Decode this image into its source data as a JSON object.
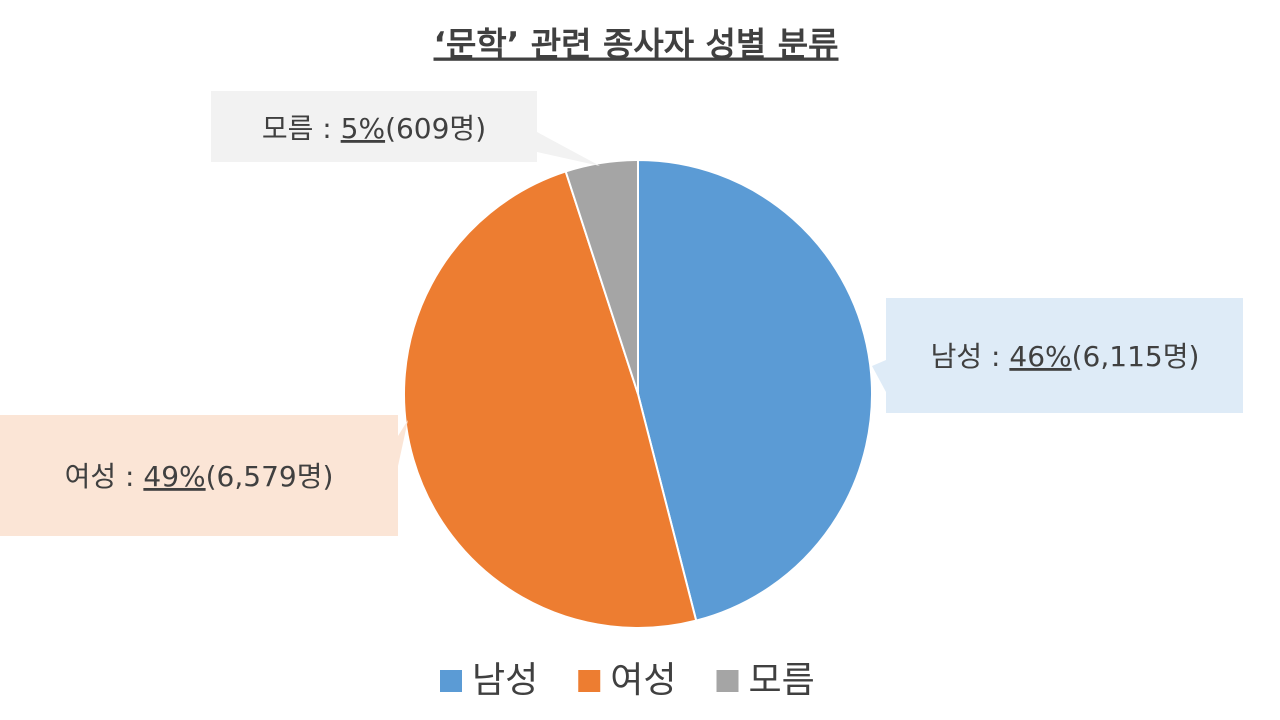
{
  "chart_data": {
    "type": "pie",
    "title": "‘문학’ 관련 종사자 성별 분류",
    "categories": [
      "남성",
      "여성",
      "모름"
    ],
    "values": [
      46,
      49,
      5
    ],
    "value_labels": [
      "46%",
      "49%",
      "5%"
    ],
    "count_labels": [
      "(6,115명)",
      "(6,579명)",
      "(609명)"
    ],
    "label_separator": " : ",
    "colors": [
      "#5b9bd5",
      "#ed7d31",
      "#a5a5a5"
    ],
    "label_box_colors": [
      "#deebf7",
      "#fbe5d6",
      "#f2f2f2"
    ],
    "legend": "bottom"
  }
}
